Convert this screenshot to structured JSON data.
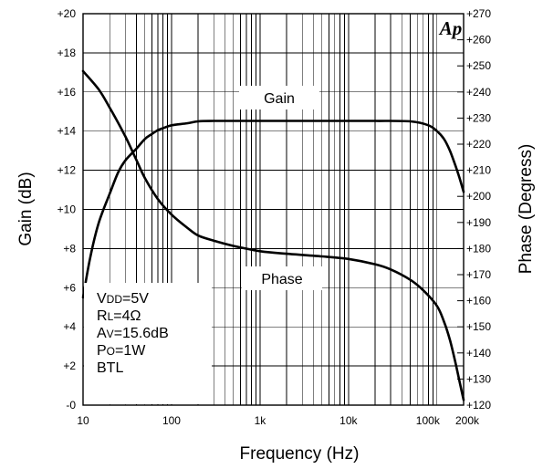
{
  "chart_data": {
    "type": "line",
    "xlabel": "Frequency (Hz)",
    "ylabel_left": "Gain (dB)",
    "ylabel_right": "Phase (Degress)",
    "x_scale": "log",
    "xlim": [
      10,
      200000
    ],
    "ylim_left": [
      0,
      20
    ],
    "ylim_right": [
      120,
      270
    ],
    "grid": true,
    "x_ticks": [
      {
        "value": 10,
        "label": "10"
      },
      {
        "value": 100,
        "label": "100"
      },
      {
        "value": 1000,
        "label": "1k"
      },
      {
        "value": 10000,
        "label": "10k"
      },
      {
        "value": 100000,
        "label": "100k"
      },
      {
        "value": 200000,
        "label": "200k"
      }
    ],
    "y_ticks_left": [
      {
        "value": 0,
        "label": "-0"
      },
      {
        "value": 2,
        "label": "+2"
      },
      {
        "value": 4,
        "label": "+4"
      },
      {
        "value": 6,
        "label": "+6"
      },
      {
        "value": 8,
        "label": "+8"
      },
      {
        "value": 10,
        "label": "+10"
      },
      {
        "value": 12,
        "label": "+12"
      },
      {
        "value": 14,
        "label": "+14"
      },
      {
        "value": 16,
        "label": "+16"
      },
      {
        "value": 18,
        "label": "+18"
      },
      {
        "value": 20,
        "label": "+20"
      }
    ],
    "y_ticks_right": [
      {
        "value": 120,
        "label": "+120"
      },
      {
        "value": 130,
        "label": "+130"
      },
      {
        "value": 140,
        "label": "+140"
      },
      {
        "value": 150,
        "label": "+150"
      },
      {
        "value": 160,
        "label": "+160"
      },
      {
        "value": 170,
        "label": "+170"
      },
      {
        "value": 180,
        "label": "+180"
      },
      {
        "value": 190,
        "label": "+190"
      },
      {
        "value": 200,
        "label": "+200"
      },
      {
        "value": 210,
        "label": "+210"
      },
      {
        "value": 220,
        "label": "+220"
      },
      {
        "value": 230,
        "label": "+230"
      },
      {
        "value": 240,
        "label": "+240"
      },
      {
        "value": 250,
        "label": "+250"
      },
      {
        "value": 260,
        "label": "+260"
      },
      {
        "value": 270,
        "label": "+270"
      }
    ],
    "series": [
      {
        "name": "Gain",
        "axis": "left",
        "x": [
          10,
          12,
          15,
          20,
          25,
          30,
          40,
          50,
          60,
          70,
          80,
          100,
          150,
          200,
          300,
          500,
          1000,
          2000,
          5000,
          10000,
          20000,
          50000,
          80000,
          100000,
          120000,
          140000,
          160000,
          180000,
          200000
        ],
        "y": [
          5.5,
          7.5,
          9.3,
          10.8,
          11.9,
          12.5,
          13.1,
          13.6,
          13.85,
          14.05,
          14.15,
          14.3,
          14.4,
          14.5,
          14.52,
          14.52,
          14.52,
          14.52,
          14.52,
          14.52,
          14.52,
          14.5,
          14.3,
          14.0,
          13.6,
          13.0,
          12.3,
          11.6,
          10.9
        ]
      },
      {
        "name": "Phase",
        "axis": "right",
        "x": [
          10,
          15,
          20,
          30,
          40,
          50,
          70,
          100,
          150,
          200,
          300,
          500,
          1000,
          2000,
          5000,
          10000,
          20000,
          30000,
          50000,
          70000,
          100000,
          120000,
          140000,
          160000,
          180000,
          200000
        ],
        "y": [
          248,
          241,
          234,
          223,
          214,
          207,
          199,
          193,
          188,
          185,
          183,
          181,
          179,
          178,
          177,
          176,
          174,
          172,
          168,
          164,
          158,
          152,
          145,
          137,
          129,
          122
        ]
      }
    ],
    "annotations": {
      "gain_label": "Gain",
      "phase_label": "Phase",
      "logo": "Ap",
      "conditions": [
        {
          "main": "V",
          "sub": "DD",
          "rest": "=5V"
        },
        {
          "main": "R",
          "sub": "L",
          "rest": "=4Ω"
        },
        {
          "main": "A",
          "sub": "V",
          "rest": "=15.6dB"
        },
        {
          "main": "P",
          "sub": "O",
          "rest": "=1W"
        },
        {
          "main": "BTL",
          "sub": "",
          "rest": ""
        }
      ]
    }
  }
}
